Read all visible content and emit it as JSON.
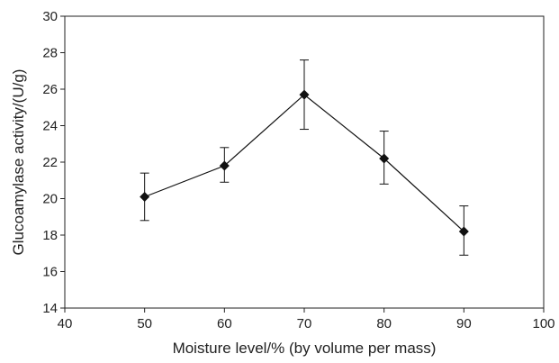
{
  "chart_data": {
    "type": "line",
    "title": "",
    "xlabel": "Moisture level/% (by volume per mass)",
    "ylabel": "Glucoamylase activity/(U/g)",
    "xlim": [
      40,
      100
    ],
    "ylim": [
      14,
      30
    ],
    "xticks": [
      "40",
      "50",
      "60",
      "70",
      "80",
      "90",
      "100"
    ],
    "yticks": [
      "14",
      "16",
      "18",
      "20",
      "22",
      "24",
      "26",
      "28",
      "30"
    ],
    "grid": false,
    "legend": "none",
    "series": [
      {
        "marker": "diamond",
        "color": "#111111",
        "x": [
          50,
          60,
          70,
          80,
          90
        ],
        "y": [
          20.1,
          21.8,
          25.7,
          22.2,
          18.2
        ],
        "error_low": [
          18.8,
          20.9,
          23.8,
          20.8,
          16.9
        ],
        "error_high": [
          21.4,
          22.8,
          27.6,
          23.7,
          19.6
        ]
      }
    ]
  }
}
